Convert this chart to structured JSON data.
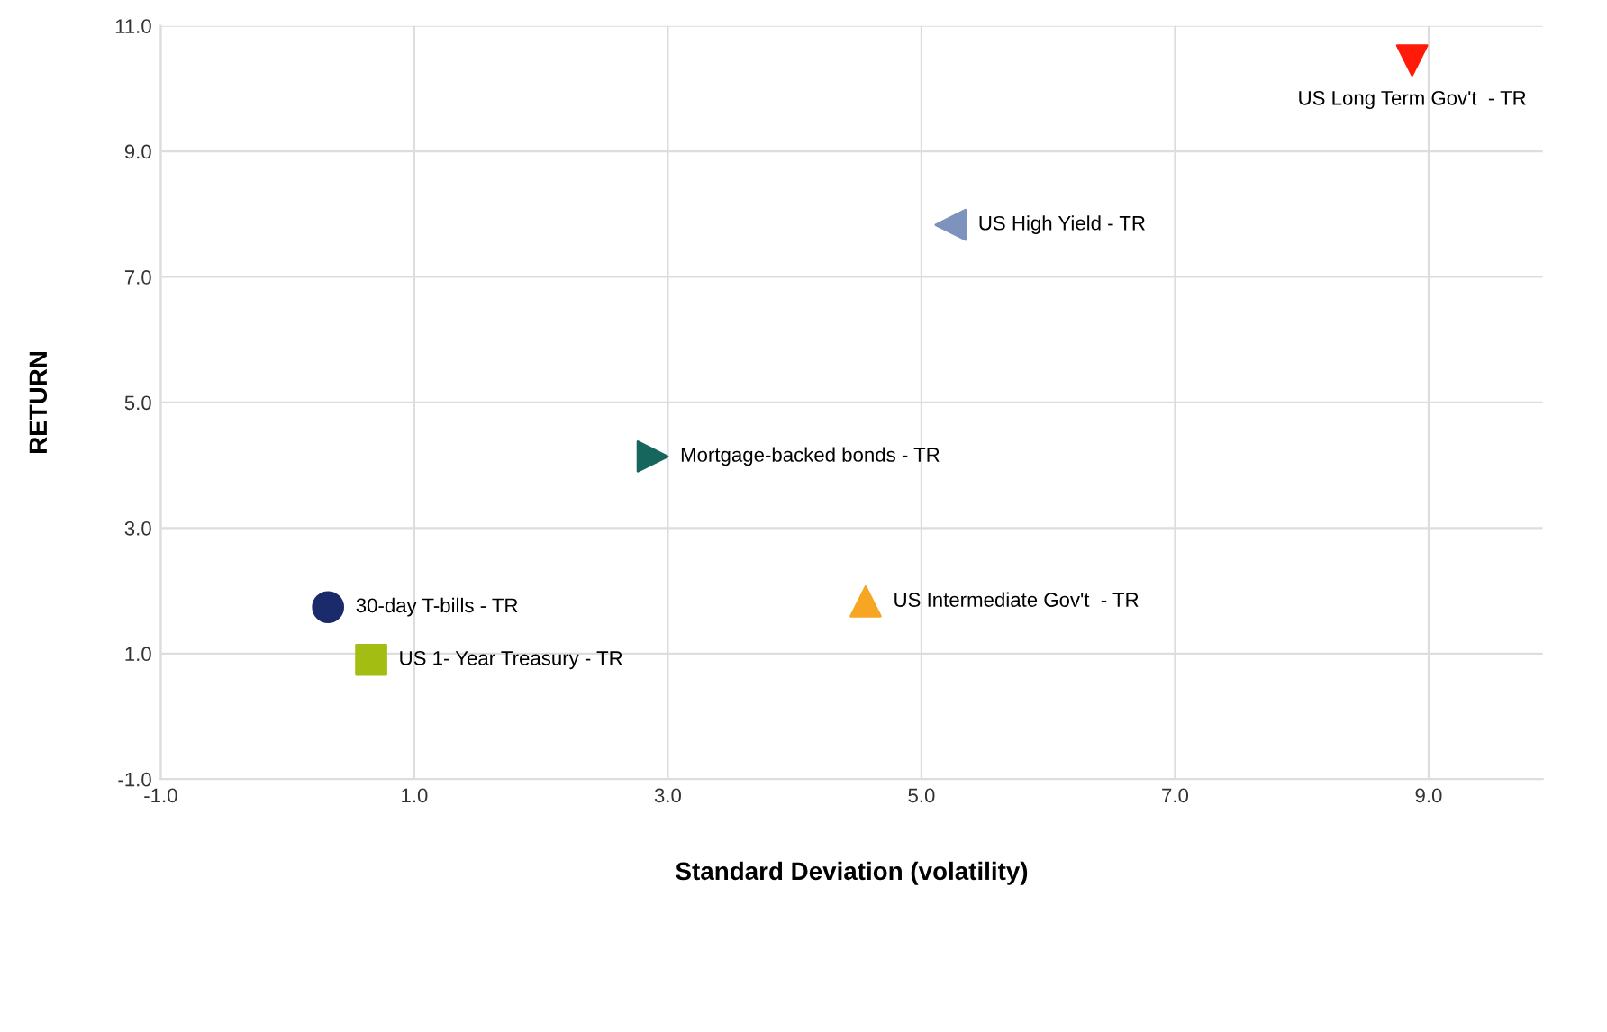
{
  "chart_data": {
    "type": "scatter",
    "xlabel": "Standard Deviation (volatility)",
    "ylabel": "RETURN",
    "series": [
      {
        "name": "30-day T-bills - TR",
        "color": "#1b2a6b",
        "marker": "circle",
        "x": [
          0.32
        ],
        "values": [
          1.74
        ]
      },
      {
        "name": "US 1- Year Treasury - TR",
        "color": "#a4bd12",
        "marker": "square",
        "x": [
          0.66
        ],
        "values": [
          0.9
        ]
      },
      {
        "name": "Mortgage-backed bonds - TR",
        "color": "#17665e",
        "marker": "triangle-right",
        "x": [
          2.88
        ],
        "values": [
          4.14
        ]
      },
      {
        "name": "US Intermediate Gov't  - TR",
        "color": "#f6a623",
        "marker": "triangle-up",
        "x": [
          4.56
        ],
        "values": [
          1.83
        ]
      },
      {
        "name": "US High Yield - TR",
        "color": "#7d93bd",
        "marker": "triangle-left",
        "x": [
          5.23
        ],
        "values": [
          7.83
        ]
      },
      {
        "name": "US Long Term Gov't  - TR",
        "color": "#ff1a0a",
        "marker": "triangle-down",
        "x": [
          8.87
        ],
        "values": [
          10.45
        ]
      }
    ],
    "xlim": [
      -1,
      9.9
    ],
    "ylim": [
      -1,
      11
    ],
    "xticks": [
      {
        "value": -1,
        "label": "-1.0"
      },
      {
        "value": 1,
        "label": "1.0"
      },
      {
        "value": 3,
        "label": "3.0"
      },
      {
        "value": 5,
        "label": "5.0"
      },
      {
        "value": 7,
        "label": "7.0"
      },
      {
        "value": 9,
        "label": "9.0"
      }
    ],
    "yticks": [
      {
        "value": -1,
        "label": "-1.0"
      },
      {
        "value": 1,
        "label": "1.0"
      },
      {
        "value": 3,
        "label": "3.0"
      },
      {
        "value": 5,
        "label": "5.0"
      },
      {
        "value": 7,
        "label": "7.0"
      },
      {
        "value": 9,
        "label": "9.0"
      },
      {
        "value": 11,
        "label": "11.0"
      }
    ],
    "grid": true,
    "legend": false
  }
}
